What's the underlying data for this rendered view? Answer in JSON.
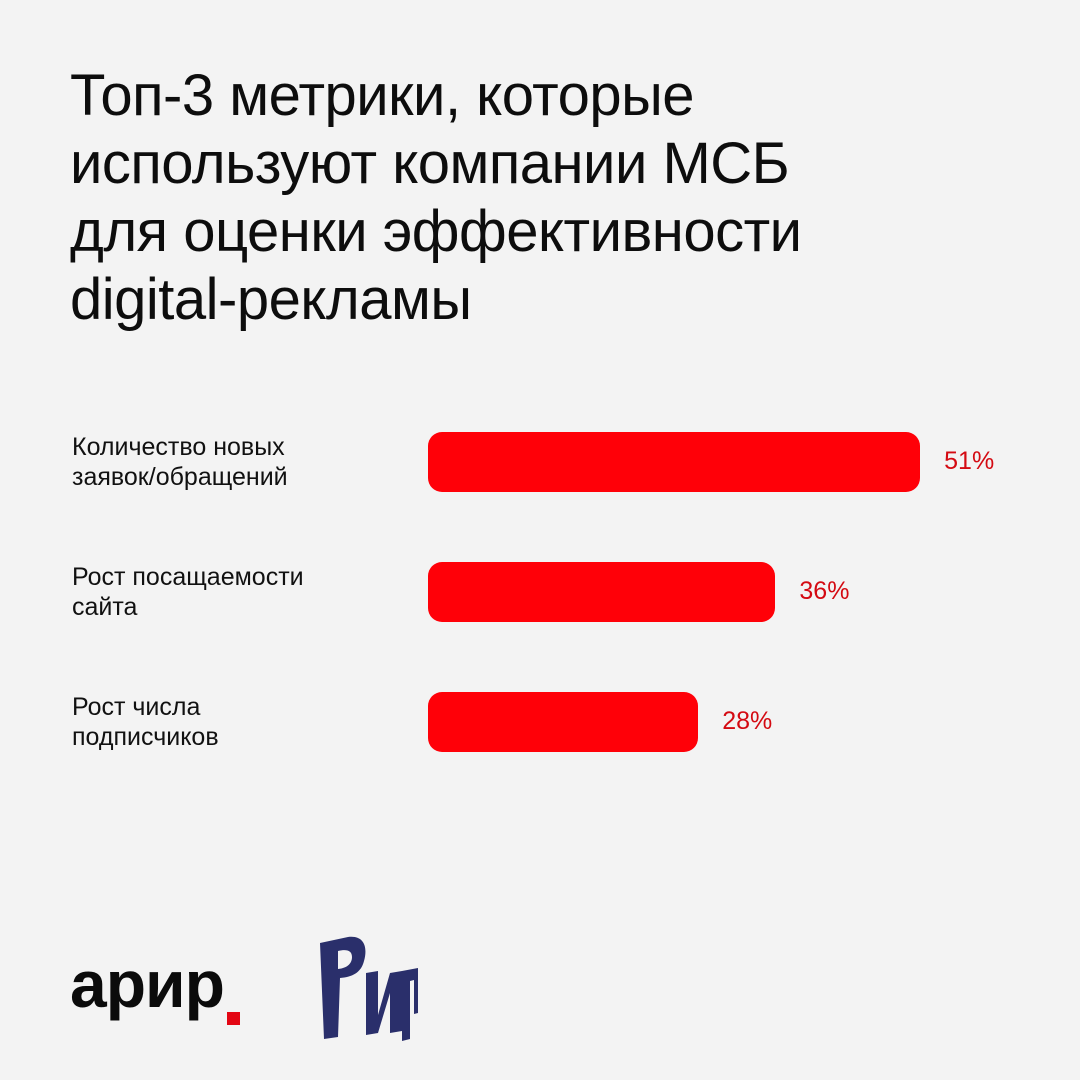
{
  "title_lines": [
    "Топ-3 метрики, которые",
    "используют компании МСБ",
    "для оценки эффективности",
    "digital-рекламы"
  ],
  "colors": {
    "bar": "#ff0008",
    "value": "#d40a12",
    "background": "#f3f3f3",
    "logo_navy": "#2a2f6b",
    "logo_red": "#e30613"
  },
  "chart_data": {
    "type": "bar",
    "orientation": "horizontal",
    "title": "Топ-3 метрики, которые используют компании МСБ для оценки эффективности digital-рекламы",
    "categories": [
      "Количество новых заявок/обращений",
      "Рост посащаемости сайта",
      "Рост числа подписчиков"
    ],
    "category_lines": [
      [
        "Количество новых",
        "заявок/обращений"
      ],
      [
        "Рост посащаемости",
        "сайта"
      ],
      [
        "Рост числа",
        "подписчиков"
      ]
    ],
    "values": [
      51,
      36,
      28
    ],
    "value_labels": [
      "51%",
      "36%",
      "28%"
    ],
    "unit": "%",
    "grid": false,
    "legend": "none"
  },
  "logos": {
    "arir": "арир",
    "rir": "РИР"
  }
}
